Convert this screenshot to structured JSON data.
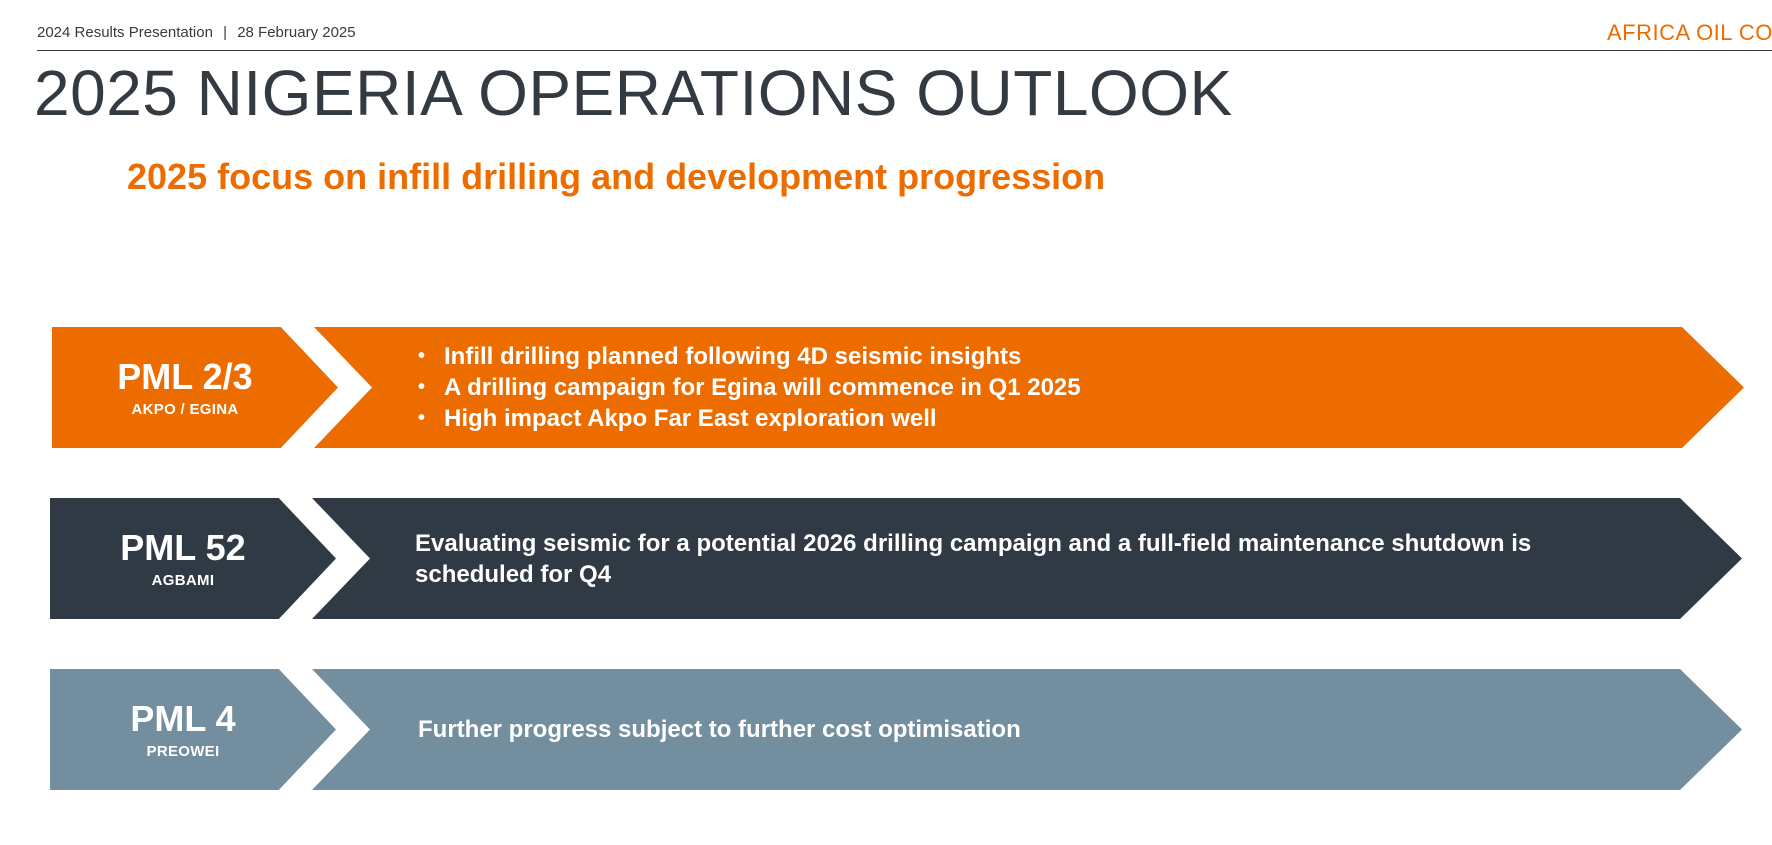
{
  "header": {
    "presentation": "2024 Results Presentation",
    "date": "28 February 2025",
    "separator": "|",
    "company": "AFRICA OIL CORP"
  },
  "title": "2025 NIGERIA OPERATIONS OUTLOOK",
  "subtitle": "2025 focus on infill drilling and development progression",
  "colors": {
    "accent_orange": "#ec6c00",
    "navy": "#2f3a44",
    "steel": "#738e9f",
    "title_text": "#333a42"
  },
  "rows": [
    {
      "tag_title": "PML 2/3",
      "tag_sub": "AKPO / EGINA",
      "bullets": [
        "Infill drilling planned following 4D seismic insights",
        "A drilling campaign for Egina will commence in Q1 2025",
        "High impact Akpo Far East exploration well"
      ]
    },
    {
      "tag_title": "PML 52",
      "tag_sub": "AGBAMI",
      "text": "Evaluating seismic for a potential 2026 drilling campaign and a full-field maintenance shutdown is scheduled for Q4"
    },
    {
      "tag_title": "PML 4",
      "tag_sub": "PREOWEI",
      "text": "Further progress subject to further cost optimisation"
    }
  ]
}
